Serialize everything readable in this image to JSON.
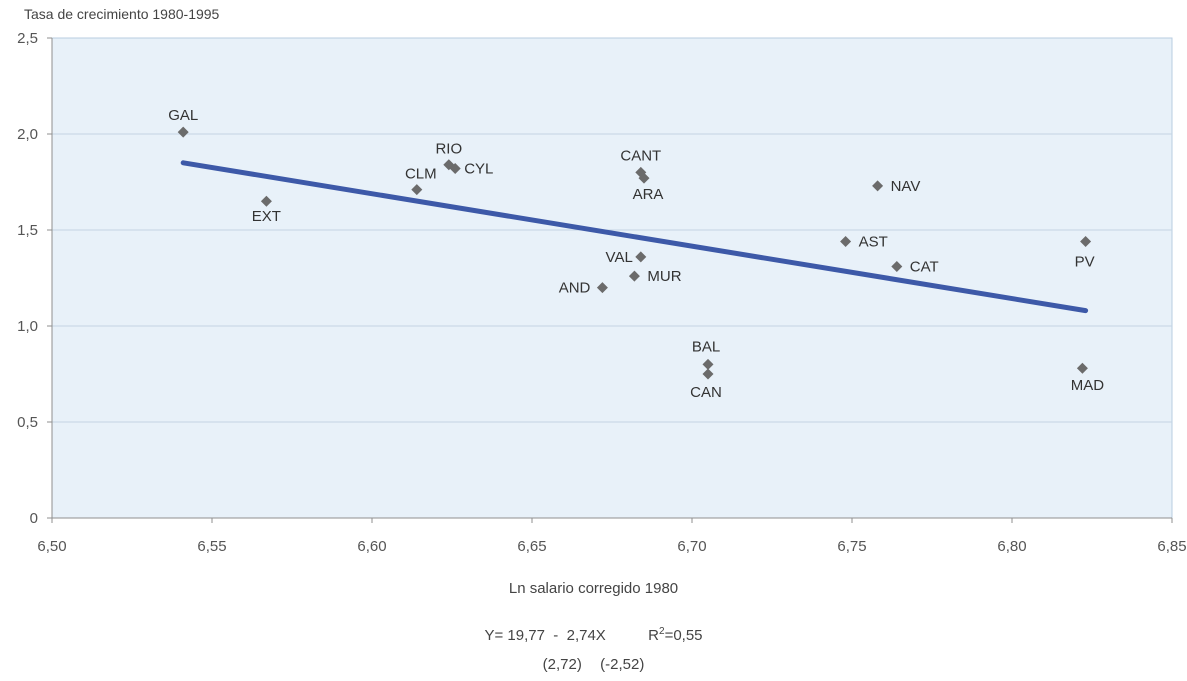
{
  "chart_data": {
    "type": "scatter",
    "ylabel": "Tasa de crecimiento 1980-1995",
    "xlabel": "Ln salario corregido 1980",
    "xlim": [
      6.5,
      6.85
    ],
    "ylim": [
      0,
      2.5
    ],
    "x_ticks": [
      "6,50",
      "6,55",
      "6,60",
      "6,65",
      "6,70",
      "6,75",
      "6,80",
      "6,85"
    ],
    "y_ticks": [
      "0",
      "0,5",
      "1,0",
      "1,5",
      "2,0",
      "2,5"
    ],
    "x_tick_values": [
      6.5,
      6.55,
      6.6,
      6.65,
      6.7,
      6.75,
      6.8,
      6.85
    ],
    "y_tick_values": [
      0,
      0.5,
      1.0,
      1.5,
      2.0,
      2.5
    ],
    "points": [
      {
        "label": "GAL",
        "x": 6.541,
        "y": 2.01
      },
      {
        "label": "EXT",
        "x": 6.567,
        "y": 1.65
      },
      {
        "label": "CLM",
        "x": 6.614,
        "y": 1.71
      },
      {
        "label": "RIO",
        "x": 6.624,
        "y": 1.84
      },
      {
        "label": "CYL",
        "x": 6.626,
        "y": 1.82
      },
      {
        "label": "CANT",
        "x": 6.684,
        "y": 1.8
      },
      {
        "label": "ARA",
        "x": 6.685,
        "y": 1.77
      },
      {
        "label": "VAL",
        "x": 6.684,
        "y": 1.36
      },
      {
        "label": "MUR",
        "x": 6.682,
        "y": 1.26
      },
      {
        "label": "AND",
        "x": 6.672,
        "y": 1.2
      },
      {
        "label": "BAL",
        "x": 6.705,
        "y": 0.8
      },
      {
        "label": "CAN",
        "x": 6.705,
        "y": 0.75
      },
      {
        "label": "NAV",
        "x": 6.758,
        "y": 1.73
      },
      {
        "label": "AST",
        "x": 6.748,
        "y": 1.44
      },
      {
        "label": "CAT",
        "x": 6.764,
        "y": 1.31
      },
      {
        "label": "PV",
        "x": 6.823,
        "y": 1.44
      },
      {
        "label": "MAD",
        "x": 6.822,
        "y": 0.78
      }
    ],
    "trend_line": {
      "x": [
        6.541,
        6.823
      ],
      "y": [
        1.85,
        1.08
      ]
    },
    "grid": true,
    "colors": {
      "marker": "#6b6b6b",
      "trend": "#3d59a8",
      "plot_bg": "#e8f1f9",
      "grid": "#c4d4e3",
      "axis": "#8f8f8f"
    }
  },
  "equation": {
    "lhs": "Y= 19,77  -  2,74X",
    "r2_prefix": "R",
    "r2_exp": "2",
    "r2_value": "=0,55",
    "se_1": "(2,72)",
    "se_2": "(-2,52)"
  }
}
